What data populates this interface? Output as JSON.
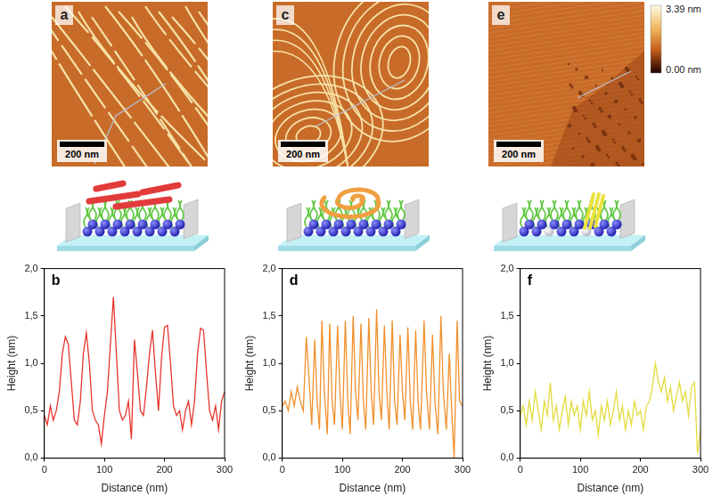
{
  "images": [
    {
      "label": "a",
      "scale_bar": "200 nm"
    },
    {
      "label": "c",
      "scale_bar": "200 nm"
    },
    {
      "label": "e",
      "scale_bar": "200 nm"
    }
  ],
  "colorbar": {
    "top": "3.39 nm",
    "bottom": "0.00 nm"
  },
  "chart_data": [
    {
      "type": "line",
      "title": "b",
      "color": "#e8352c",
      "x_label": "Distance (nm)",
      "y_label": "Height (nm)",
      "grid": false,
      "x": [
        0,
        5,
        10,
        15,
        20,
        25,
        30,
        35,
        40,
        45,
        50,
        55,
        60,
        65,
        70,
        75,
        80,
        85,
        90,
        95,
        100,
        105,
        110,
        115,
        120,
        125,
        130,
        135,
        140,
        145,
        150,
        155,
        160,
        165,
        170,
        175,
        180,
        185,
        190,
        195,
        200,
        205,
        210,
        215,
        220,
        225,
        230,
        235,
        240,
        245,
        250,
        255,
        260,
        265,
        270,
        275,
        280,
        285,
        290,
        295,
        300
      ],
      "values": [
        0.45,
        0.35,
        0.55,
        0.4,
        0.5,
        0.7,
        1.1,
        1.28,
        1.2,
        0.8,
        0.4,
        0.35,
        0.6,
        1.1,
        1.32,
        1.0,
        0.5,
        0.4,
        0.35,
        0.15,
        0.45,
        0.7,
        1.2,
        1.7,
        1.1,
        0.5,
        0.4,
        0.45,
        0.6,
        0.2,
        1.25,
        0.9,
        0.5,
        0.45,
        0.75,
        1.1,
        1.35,
        0.9,
        0.5,
        1.05,
        1.38,
        1.4,
        1.0,
        0.55,
        0.45,
        0.5,
        0.3,
        0.5,
        0.6,
        0.35,
        0.6,
        1.1,
        1.37,
        1.35,
        0.9,
        0.5,
        0.4,
        0.55,
        0.3,
        0.6,
        0.7
      ],
      "xlim": [
        0,
        300
      ],
      "xticks": [
        0,
        100,
        200,
        300
      ],
      "ylim": [
        0,
        2
      ],
      "yticks": [
        {
          "value": 0,
          "label": "0,0"
        },
        {
          "value": 0.5,
          "label": "0,5"
        },
        {
          "value": 1,
          "label": "1,0"
        },
        {
          "value": 1.5,
          "label": "1,5"
        },
        {
          "value": 2,
          "label": "2,0"
        }
      ]
    },
    {
      "type": "line",
      "title": "d",
      "color": "#f0902c",
      "x_label": "Distance (nm)",
      "y_label": "Height (nm)",
      "grid": false,
      "x": [
        0,
        5,
        10,
        15,
        20,
        25,
        30,
        35,
        40,
        45,
        49,
        54,
        58,
        62,
        66,
        70,
        75,
        79,
        83,
        87,
        92,
        96,
        100,
        105,
        109,
        113,
        118,
        122,
        126,
        131,
        135,
        139,
        144,
        148,
        152,
        157,
        161,
        165,
        170,
        174,
        178,
        183,
        187,
        191,
        196,
        200,
        204,
        209,
        213,
        217,
        222,
        226,
        230,
        236,
        240,
        245,
        250,
        254,
        259,
        264,
        268,
        273,
        278,
        282,
        286,
        291,
        295,
        300
      ],
      "values": [
        0.55,
        0.6,
        0.5,
        0.7,
        0.55,
        0.75,
        0.6,
        0.5,
        1.28,
        0.8,
        0.35,
        1.25,
        0.6,
        0.3,
        1.45,
        0.7,
        0.25,
        1.42,
        0.6,
        0.35,
        1.4,
        0.7,
        0.3,
        1.45,
        0.6,
        0.25,
        1.5,
        0.7,
        0.4,
        1.42,
        0.6,
        0.3,
        1.48,
        0.7,
        0.35,
        1.57,
        0.7,
        0.4,
        1.4,
        0.7,
        0.3,
        1.45,
        0.6,
        0.35,
        1.3,
        0.7,
        0.4,
        1.38,
        0.6,
        0.3,
        1.35,
        0.6,
        0.3,
        1.45,
        0.7,
        0.3,
        1.3,
        0.6,
        0.25,
        1.5,
        0.7,
        0.3,
        1.1,
        0.5,
        0.0,
        1.45,
        0.6,
        0.55
      ],
      "xlim": [
        0,
        300
      ],
      "xticks": [
        0,
        100,
        200,
        300
      ],
      "ylim": [
        0,
        2
      ],
      "yticks": [
        {
          "value": 0,
          "label": "0,0"
        },
        {
          "value": 0.5,
          "label": "0,5"
        },
        {
          "value": 1,
          "label": "1,0"
        },
        {
          "value": 1.5,
          "label": "1,5"
        },
        {
          "value": 2,
          "label": "2,0"
        }
      ]
    },
    {
      "type": "line",
      "title": "f",
      "color": "#e3dc3c",
      "x_label": "Distance (nm)",
      "y_label": "Height (nm)",
      "grid": false,
      "x": [
        0,
        5,
        10,
        15,
        20,
        25,
        30,
        35,
        40,
        45,
        50,
        55,
        60,
        65,
        70,
        75,
        80,
        85,
        90,
        95,
        100,
        105,
        110,
        115,
        120,
        125,
        130,
        135,
        140,
        145,
        150,
        155,
        160,
        165,
        170,
        175,
        180,
        185,
        190,
        195,
        200,
        205,
        210,
        215,
        220,
        225,
        230,
        235,
        240,
        245,
        250,
        255,
        260,
        265,
        270,
        275,
        280,
        285,
        290,
        295,
        300
      ],
      "values": [
        0.45,
        0.55,
        0.35,
        0.6,
        0.4,
        0.7,
        0.5,
        0.3,
        0.6,
        0.45,
        0.8,
        0.4,
        0.55,
        0.3,
        0.5,
        0.65,
        0.35,
        0.6,
        0.45,
        0.55,
        0.3,
        0.6,
        0.45,
        0.7,
        0.4,
        0.5,
        0.25,
        0.55,
        0.4,
        0.6,
        0.35,
        0.5,
        0.7,
        0.4,
        0.55,
        0.3,
        0.5,
        0.35,
        0.6,
        0.45,
        0.5,
        0.3,
        0.55,
        0.6,
        0.75,
        1.0,
        0.8,
        0.7,
        0.85,
        0.6,
        0.75,
        0.5,
        0.65,
        0.8,
        0.6,
        0.7,
        0.45,
        0.75,
        0.8,
        0.05,
        0.3
      ],
      "xlim": [
        0,
        300
      ],
      "xticks": [
        0,
        100,
        200,
        300
      ],
      "ylim": [
        0,
        2
      ],
      "yticks": [
        {
          "value": 0,
          "label": "0,0"
        },
        {
          "value": 0.5,
          "label": "0,5"
        },
        {
          "value": 1,
          "label": "1,0"
        },
        {
          "value": 1.5,
          "label": "1,5"
        },
        {
          "value": 2,
          "label": "2,0"
        }
      ]
    }
  ]
}
